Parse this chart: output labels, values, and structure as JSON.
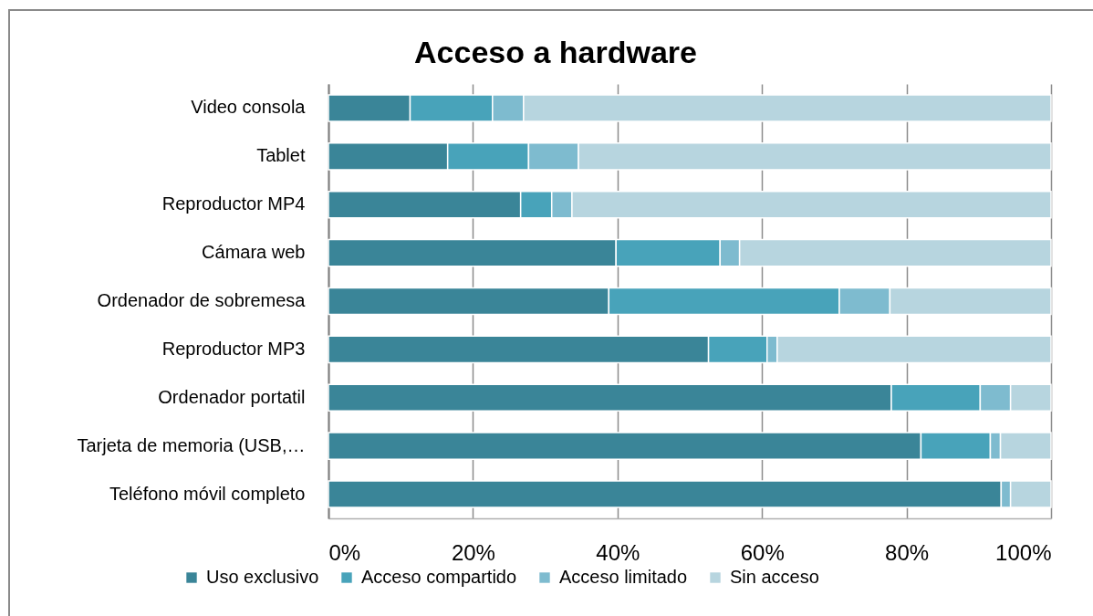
{
  "chart_data": {
    "type": "bar",
    "title": "Acceso a hardware",
    "orientation": "horizontal",
    "stacked": true,
    "categories": [
      "Video consola",
      "Tablet",
      "Reproductor MP4",
      "Cámara web",
      "Ordenador de sobremesa",
      "Reproductor MP3",
      "Ordenador portatil",
      "Tarjeta de memoria (USB,…",
      "Teléfono móvil completo"
    ],
    "series": [
      {
        "name": "Uso exclusivo",
        "color": "#3a8598",
        "values": [
          11.3,
          16.5,
          26.6,
          39.8,
          38.8,
          52.6,
          77.9,
          82.0,
          93.1
        ]
      },
      {
        "name": "Acceso compartido",
        "color": "#48a3ba",
        "values": [
          11.4,
          11.2,
          4.3,
          14.4,
          31.9,
          8.1,
          12.3,
          9.6,
          null
        ]
      },
      {
        "name": "Acceso limitado",
        "color": "#7ebbcf",
        "values": [
          4.3,
          6.9,
          2.8,
          2.7,
          7.0,
          1.4,
          4.2,
          1.4,
          1.3
        ]
      },
      {
        "name": "Sin acceso",
        "color": "#b7d5df",
        "values": [
          73.0,
          65.4,
          66.3,
          43.1,
          22.3,
          37.9,
          5.6,
          7.0,
          5.6
        ]
      }
    ],
    "xlim": [
      0,
      100
    ],
    "xticks": [
      {
        "value": 0,
        "label": "0%"
      },
      {
        "value": 20,
        "label": "20%"
      },
      {
        "value": 40,
        "label": "40%"
      },
      {
        "value": 60,
        "label": "60%"
      },
      {
        "value": 80,
        "label": "80%"
      },
      {
        "value": 100,
        "label": "100%"
      }
    ],
    "grid": "x",
    "legend": "bottom"
  }
}
